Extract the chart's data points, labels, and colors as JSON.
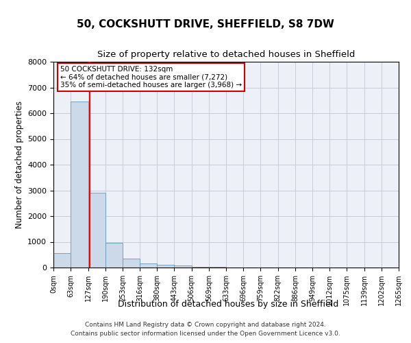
{
  "title": "50, COCKSHUTT DRIVE, SHEFFIELD, S8 7DW",
  "subtitle": "Size of property relative to detached houses in Sheffield",
  "xlabel": "Distribution of detached houses by size in Sheffield",
  "ylabel": "Number of detached properties",
  "bar_edges": [
    0,
    63,
    127,
    190,
    253,
    316,
    380,
    443,
    506,
    569,
    633,
    696,
    759,
    822,
    886,
    949,
    1012,
    1075,
    1139,
    1202,
    1265
  ],
  "bar_heights": [
    550,
    6450,
    2900,
    970,
    340,
    160,
    110,
    75,
    30,
    15,
    8,
    5,
    3,
    2,
    1,
    1,
    0,
    0,
    0,
    0
  ],
  "bar_color": "#ccd9e8",
  "bar_edgecolor": "#6699bb",
  "grid_color": "#c8ccd8",
  "bg_color": "#eef0f8",
  "red_line_x": 132,
  "annotation_text": "50 COCKSHUTT DRIVE: 132sqm\n← 64% of detached houses are smaller (7,272)\n35% of semi-detached houses are larger (3,968) →",
  "annotation_box_edgecolor": "#cc0000",
  "ylim_max": 8000,
  "yticks": [
    0,
    1000,
    2000,
    3000,
    4000,
    5000,
    6000,
    7000,
    8000
  ],
  "footer_line1": "Contains HM Land Registry data © Crown copyright and database right 2024.",
  "footer_line2": "Contains public sector information licensed under the Open Government Licence v3.0."
}
